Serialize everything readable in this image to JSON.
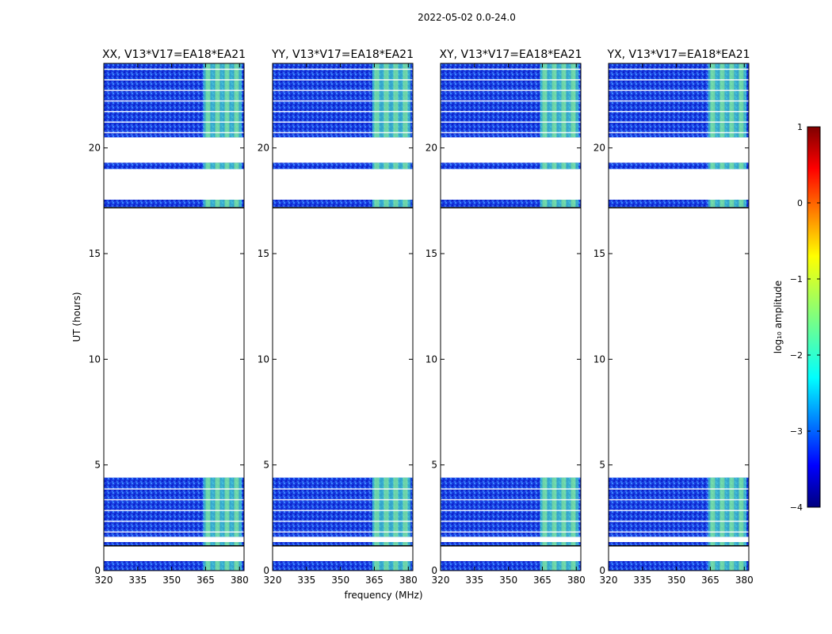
{
  "chart_data": {
    "type": "heatmap",
    "title": "2022-05-02 0.0-24.0",
    "xlabel": "frequency (MHz)",
    "ylabel": "UT (hours)",
    "xlim": [
      320,
      382
    ],
    "ylim": [
      0,
      24
    ],
    "xticks": [
      320,
      335,
      350,
      365,
      380
    ],
    "yticks": [
      0,
      5,
      10,
      15,
      20
    ],
    "panels": [
      {
        "title": "XX, V13*V17=EA18*EA21"
      },
      {
        "title": "YY, V13*V17=EA18*EA21"
      },
      {
        "title": "XY, V13*V17=EA18*EA21"
      },
      {
        "title": "YX, V13*V17=EA18*EA21"
      }
    ],
    "data_blocks_hours": [
      [
        0,
        0.45
      ],
      [
        1.2,
        1.35
      ],
      [
        1.6,
        4.4
      ],
      [
        17.2,
        17.55
      ],
      [
        19.0,
        19.3
      ],
      [
        20.5,
        24.0
      ]
    ],
    "rfi_band_mhz": [
      364,
      381
    ],
    "colorbar": {
      "label": "log₁₀ amplitude",
      "range": [
        -4,
        1
      ],
      "ticks": [
        "1",
        "0",
        "−1",
        "−2",
        "−3",
        "−4"
      ],
      "colors": [
        "#00007f",
        "#0000ff",
        "#007fff",
        "#00ffff",
        "#7fff7f",
        "#ffff00",
        "#ff7f00",
        "#ff0000",
        "#7f0000"
      ]
    }
  }
}
